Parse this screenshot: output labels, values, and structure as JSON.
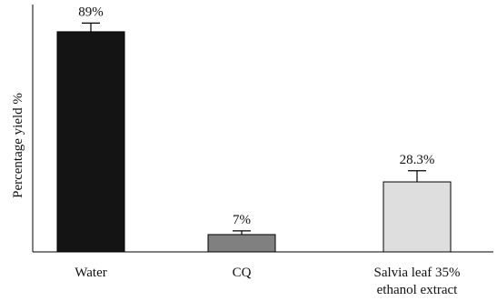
{
  "chart_data": {
    "type": "bar",
    "title": "",
    "xlabel": "",
    "ylabel": "Percentage yield %",
    "ylim": [
      0,
      100
    ],
    "grid": false,
    "categories": [
      [
        "Water"
      ],
      [
        "CQ"
      ],
      [
        "Salvia leaf 35%",
        "ethanol extract"
      ]
    ],
    "values": [
      89,
      7,
      28.3
    ],
    "error": [
      3.5,
      1.5,
      4.5
    ],
    "value_labels": [
      "89%",
      "7%",
      "28.3%"
    ],
    "colors": [
      "#141414",
      "#808080",
      "#dedede"
    ]
  }
}
